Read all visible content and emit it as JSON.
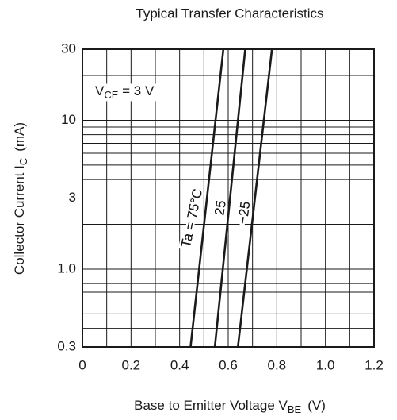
{
  "chart_data": {
    "type": "line",
    "title": "Typical Transfer Characteristics",
    "x_label": {
      "main": "Base to Emitter Voltage  V",
      "sub": "BE",
      "unit": "(V)"
    },
    "y_label": {
      "main": "Collector Current  I",
      "sub": "C",
      "unit": "(mA)"
    },
    "annotation": {
      "main": "V",
      "sub": "CE",
      "rest": " = 3 V"
    },
    "xlim": [
      0,
      1.2
    ],
    "ylim": [
      0.3,
      30
    ],
    "log_y": true,
    "grid": true,
    "xticks": [
      0,
      0.2,
      0.4,
      0.6,
      0.8,
      {
        "value": 1,
        "label": "1.0"
      },
      1.2
    ],
    "yticks": [
      0.3,
      {
        "value": 1,
        "label": "1.0"
      },
      3,
      10,
      30
    ],
    "x_minor_grid": [
      0.1,
      0.3,
      0.5,
      0.7,
      0.9,
      1.1
    ],
    "y_minor_grid": [
      0.4,
      0.5,
      0.6,
      0.7,
      0.8,
      0.9,
      2,
      4,
      5,
      6,
      7,
      8,
      9,
      20
    ],
    "series": [
      {
        "name": "Ta = 75°C",
        "color": "#1a1a1a",
        "x": [
          0.445,
          0.58
        ],
        "values": [
          0.3,
          30
        ]
      },
      {
        "name": "25",
        "color": "#1a1a1a",
        "x": [
          0.545,
          0.67
        ],
        "values": [
          0.3,
          30
        ]
      },
      {
        "name": "−25",
        "color": "#1a1a1a",
        "x": [
          0.64,
          0.78
        ],
        "values": [
          0.3,
          30
        ]
      }
    ]
  }
}
